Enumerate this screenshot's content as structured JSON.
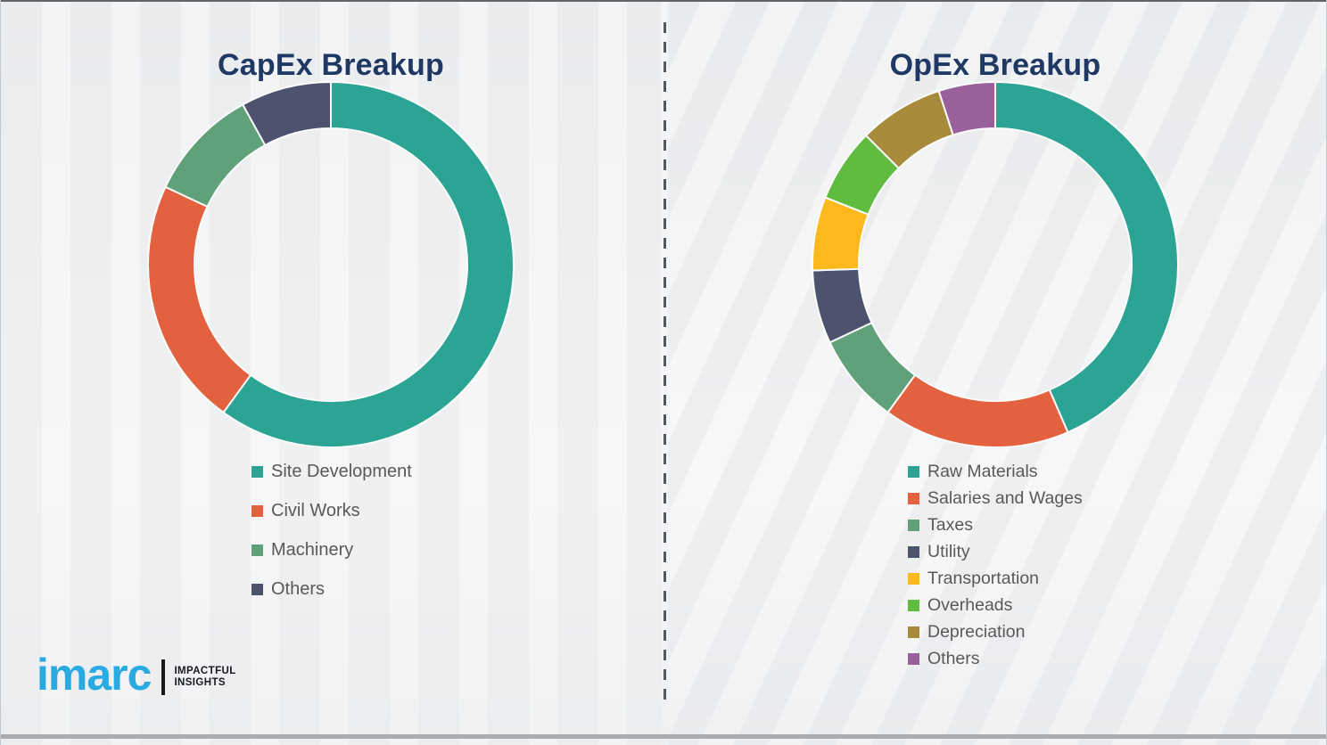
{
  "theme": {
    "title_color": "#203864",
    "legend_text_color": "#595959",
    "background": "#f4f5f6",
    "divider_color": "#54575b",
    "segment_gap_color": "#fcfcfc",
    "logo_blue": "#29ABE2"
  },
  "branding": {
    "logo_text": "imarc",
    "tagline_line1": "IMPACTFUL",
    "tagline_line2": "INSIGHTS"
  },
  "chart_data": [
    {
      "type": "pie",
      "donut": true,
      "title": "CapEx Breakup",
      "legend_position": "below-left",
      "start_angle_deg": 0,
      "direction": "clockwise",
      "segments": [
        {
          "label": "Site Development",
          "value": 60,
          "color": "#2BA493"
        },
        {
          "label": "Civil Works",
          "value": 22,
          "color": "#E4613F"
        },
        {
          "label": "Machinery",
          "value": 10,
          "color": "#61A179"
        },
        {
          "label": "Others",
          "value": 8,
          "color": "#4D536F"
        }
      ]
    },
    {
      "type": "pie",
      "donut": true,
      "title": "OpEx Breakup",
      "legend_position": "below-left",
      "start_angle_deg": 0,
      "direction": "clockwise",
      "segments": [
        {
          "label": "Raw Materials",
          "value": 43.5,
          "color": "#2BA493"
        },
        {
          "label": "Salaries and Wages",
          "value": 16.5,
          "color": "#E4613F"
        },
        {
          "label": "Taxes",
          "value": 8,
          "color": "#61A179"
        },
        {
          "label": "Utility",
          "value": 6.5,
          "color": "#4D536F"
        },
        {
          "label": "Transportation",
          "value": 6.5,
          "color": "#FBB91D"
        },
        {
          "label": "Overheads",
          "value": 6.5,
          "color": "#5FBC3F"
        },
        {
          "label": "Depreciation",
          "value": 7.5,
          "color": "#A78B3B"
        },
        {
          "label": "Others",
          "value": 5,
          "color": "#99619B"
        }
      ]
    }
  ]
}
